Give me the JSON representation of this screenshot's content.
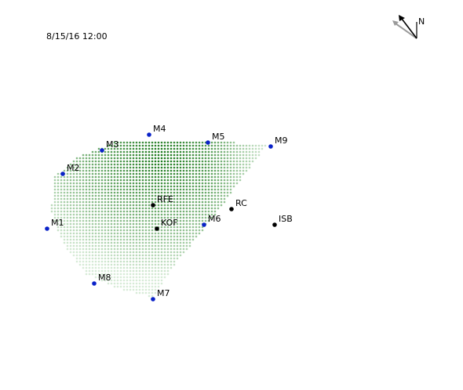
{
  "timestamp": "8/15/16 12:00",
  "compass": {
    "label": "N",
    "icon": "north-arrow-icon"
  },
  "colors": {
    "measurement_station": "#0a22c8",
    "reference_site": "#000000",
    "plume_dark": "#1a7a1a",
    "plume_light": "#d7edd4"
  },
  "stations": [
    {
      "id": "M1",
      "type": "measurement",
      "lon": 60,
      "lat": 292
    },
    {
      "id": "M2",
      "type": "measurement",
      "lon": 80,
      "lat": 222
    },
    {
      "id": "M3",
      "type": "measurement",
      "lon": 130,
      "lat": 192
    },
    {
      "id": "M4",
      "type": "measurement",
      "lon": 190,
      "lat": 172
    },
    {
      "id": "M5",
      "type": "measurement",
      "lon": 265,
      "lat": 182
    },
    {
      "id": "M9",
      "type": "measurement",
      "lon": 345,
      "lat": 187
    },
    {
      "id": "M6",
      "type": "measurement",
      "lon": 260,
      "lat": 287
    },
    {
      "id": "M7",
      "type": "measurement",
      "lon": 195,
      "lat": 382
    },
    {
      "id": "M8",
      "type": "measurement",
      "lon": 120,
      "lat": 362
    },
    {
      "id": "RFE",
      "type": "site",
      "lon": 195,
      "lat": 262
    },
    {
      "id": "KOF",
      "type": "site",
      "lon": 200,
      "lat": 292
    },
    {
      "id": "RC",
      "type": "site",
      "lon": 295,
      "lat": 267
    },
    {
      "id": "ISB",
      "type": "site",
      "lon": 350,
      "lat": 287
    }
  ]
}
